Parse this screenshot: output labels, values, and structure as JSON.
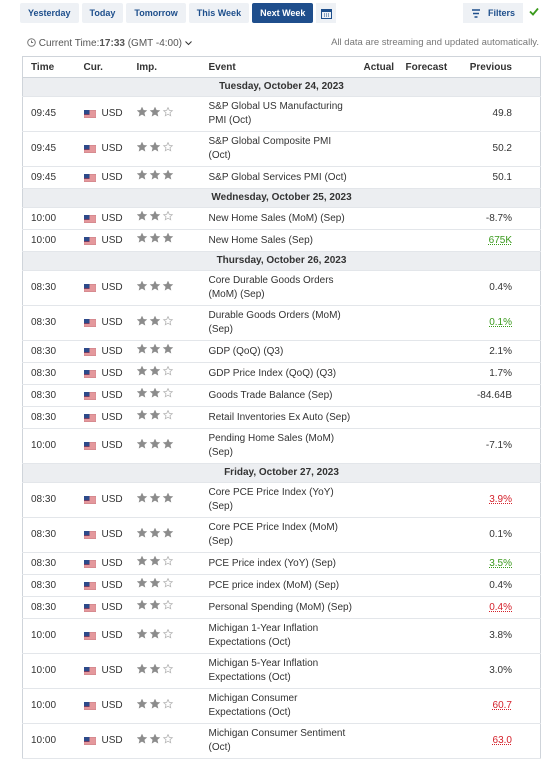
{
  "tabs": [
    "Yesterday",
    "Today",
    "Tomorrow",
    "This Week",
    "Next Week"
  ],
  "active_tab_index": 4,
  "filters_label": "Filters",
  "current_time_label": "Current Time:",
  "current_time": "17:33",
  "timezone": "(GMT -4:00)",
  "streaming_note": "All data are streaming and updated automatically.",
  "columns": [
    "Time",
    "Cur.",
    "Imp.",
    "Event",
    "Actual",
    "Forecast",
    "Previous"
  ],
  "days": [
    {
      "date": "Tuesday, October 24, 2023",
      "events": [
        {
          "time": "09:45",
          "currency": "USD",
          "importance": 2,
          "event": "S&P Global US Manufacturing PMI (Oct)",
          "previous": "49.8"
        },
        {
          "time": "09:45",
          "currency": "USD",
          "importance": 2,
          "event": "S&P Global Composite PMI (Oct)",
          "previous": "50.2"
        },
        {
          "time": "09:45",
          "currency": "USD",
          "importance": 3,
          "event": "S&P Global Services PMI (Oct)",
          "previous": "50.1"
        }
      ]
    },
    {
      "date": "Wednesday, October 25, 2023",
      "events": [
        {
          "time": "10:00",
          "currency": "USD",
          "importance": 2,
          "event": "New Home Sales (MoM) (Sep)",
          "previous": "-8.7%"
        },
        {
          "time": "10:00",
          "currency": "USD",
          "importance": 3,
          "event": "New Home Sales (Sep)",
          "previous": "675K",
          "previous_color": "#3a9a1c"
        }
      ]
    },
    {
      "date": "Thursday, October 26, 2023",
      "events": [
        {
          "time": "08:30",
          "currency": "USD",
          "importance": 3,
          "event": "Core Durable Goods Orders (MoM) (Sep)",
          "previous": "0.4%"
        },
        {
          "time": "08:30",
          "currency": "USD",
          "importance": 2,
          "event": "Durable Goods Orders (MoM) (Sep)",
          "previous": "0.1%",
          "previous_color": "#3a9a1c"
        },
        {
          "time": "08:30",
          "currency": "USD",
          "importance": 3,
          "event": "GDP (QoQ) (Q3)",
          "previous": "2.1%"
        },
        {
          "time": "08:30",
          "currency": "USD",
          "importance": 2,
          "event": "GDP Price Index (QoQ) (Q3)",
          "previous": "1.7%"
        },
        {
          "time": "08:30",
          "currency": "USD",
          "importance": 2,
          "event": "Goods Trade Balance (Sep)",
          "previous": "-84.64B"
        },
        {
          "time": "08:30",
          "currency": "USD",
          "importance": 2,
          "event": "Retail Inventories Ex Auto (Sep)"
        },
        {
          "time": "10:00",
          "currency": "USD",
          "importance": 3,
          "event": "Pending Home Sales (MoM) (Sep)",
          "previous": "-7.1%"
        }
      ]
    },
    {
      "date": "Friday, October 27, 2023",
      "events": [
        {
          "time": "08:30",
          "currency": "USD",
          "importance": 3,
          "event": "Core PCE Price Index (YoY) (Sep)",
          "previous": "3.9%",
          "previous_color": "#d4202a"
        },
        {
          "time": "08:30",
          "currency": "USD",
          "importance": 3,
          "event": "Core PCE Price Index (MoM) (Sep)",
          "previous": "0.1%"
        },
        {
          "time": "08:30",
          "currency": "USD",
          "importance": 2,
          "event": "PCE Price index (YoY) (Sep)",
          "previous": "3.5%",
          "previous_color": "#3a9a1c"
        },
        {
          "time": "08:30",
          "currency": "USD",
          "importance": 2,
          "event": "PCE price index (MoM) (Sep)",
          "previous": "0.4%"
        },
        {
          "time": "08:30",
          "currency": "USD",
          "importance": 2,
          "event": "Personal Spending (MoM) (Sep)",
          "previous": "0.4%",
          "previous_color": "#d4202a"
        },
        {
          "time": "10:00",
          "currency": "USD",
          "importance": 2,
          "event": "Michigan 1-Year Inflation Expectations (Oct)",
          "previous": "3.8%"
        },
        {
          "time": "10:00",
          "currency": "USD",
          "importance": 2,
          "event": "Michigan 5-Year Inflation Expectations (Oct)",
          "previous": "3.0%"
        },
        {
          "time": "10:00",
          "currency": "USD",
          "importance": 2,
          "event": "Michigan Consumer Expectations (Oct)",
          "previous": "60.7",
          "previous_color": "#d4202a"
        },
        {
          "time": "10:00",
          "currency": "USD",
          "importance": 2,
          "event": "Michigan Consumer Sentiment (Oct)",
          "previous": "63.0",
          "previous_color": "#d4202a"
        }
      ]
    }
  ]
}
